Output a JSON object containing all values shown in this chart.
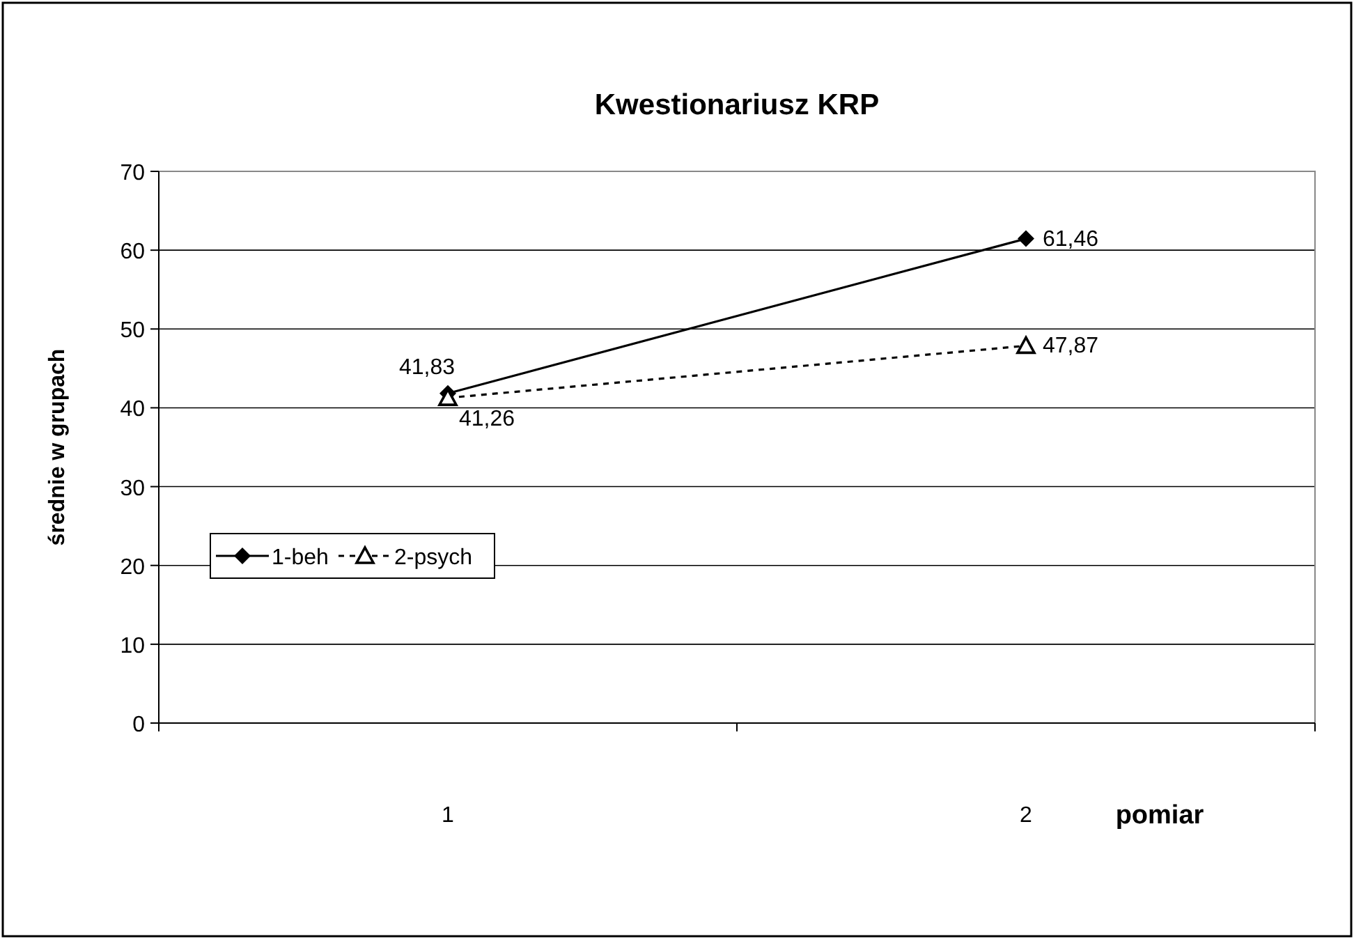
{
  "chart_data": {
    "type": "line",
    "title": "Kwestionariusz KRP",
    "xlabel": "pomiar",
    "ylabel": "średnie w grupach",
    "categories": [
      "1",
      "2"
    ],
    "ylim": [
      0,
      70
    ],
    "yticks": [
      0,
      10,
      20,
      30,
      40,
      50,
      60,
      70
    ],
    "grid": "y",
    "legend": "left",
    "series": [
      {
        "name": "1-beh",
        "color": "#000000",
        "marker": "diamond",
        "line_style": "solid",
        "values": [
          41.83,
          61.46
        ],
        "value_labels": [
          "41,83",
          "61,46"
        ]
      },
      {
        "name": "2-psych",
        "color": "#000000",
        "marker": "triangle",
        "line_style": "dashed",
        "values": [
          41.26,
          47.87
        ],
        "value_labels": [
          "41,26",
          "47,87"
        ]
      }
    ]
  }
}
